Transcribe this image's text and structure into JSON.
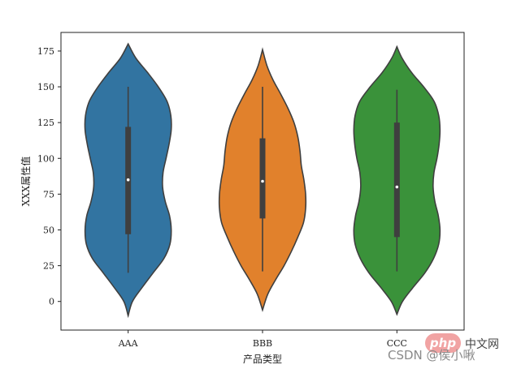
{
  "chart_data": {
    "type": "violin",
    "xlabel": "产品类型",
    "ylabel": "XXX属性值",
    "categories": [
      "AAA",
      "BBB",
      "CCC"
    ],
    "colors": [
      "#3274a1",
      "#e1812c",
      "#3a923a"
    ],
    "ylim": [
      -20,
      188
    ],
    "yticks": [
      0,
      25,
      50,
      75,
      100,
      125,
      150,
      175
    ],
    "grid": false,
    "legend": "none",
    "series": [
      {
        "box": {
          "min": 20,
          "q1": 47,
          "median": 85,
          "q3": 122,
          "max": 150
        },
        "density": [
          [
            -10,
            0.0
          ],
          [
            0,
            0.1
          ],
          [
            10,
            0.33
          ],
          [
            20,
            0.58
          ],
          [
            30,
            0.83
          ],
          [
            40,
            0.97
          ],
          [
            50,
            1.0
          ],
          [
            60,
            0.96
          ],
          [
            70,
            0.86
          ],
          [
            80,
            0.8
          ],
          [
            90,
            0.81
          ],
          [
            100,
            0.88
          ],
          [
            110,
            0.95
          ],
          [
            120,
            1.0
          ],
          [
            130,
            0.99
          ],
          [
            140,
            0.9
          ],
          [
            150,
            0.7
          ],
          [
            160,
            0.45
          ],
          [
            170,
            0.18
          ],
          [
            180,
            0.0
          ]
        ]
      },
      {
        "box": {
          "min": 21,
          "q1": 58,
          "median": 84,
          "q3": 114,
          "max": 150
        },
        "density": [
          [
            -6,
            0.0
          ],
          [
            5,
            0.12
          ],
          [
            15,
            0.3
          ],
          [
            25,
            0.5
          ],
          [
            35,
            0.67
          ],
          [
            45,
            0.82
          ],
          [
            55,
            0.95
          ],
          [
            65,
            1.0
          ],
          [
            75,
            1.0
          ],
          [
            85,
            0.96
          ],
          [
            95,
            0.9
          ],
          [
            105,
            0.87
          ],
          [
            115,
            0.82
          ],
          [
            125,
            0.73
          ],
          [
            135,
            0.59
          ],
          [
            145,
            0.42
          ],
          [
            155,
            0.24
          ],
          [
            165,
            0.1
          ],
          [
            176,
            0.0
          ]
        ]
      },
      {
        "box": {
          "min": 21,
          "q1": 45,
          "median": 80,
          "q3": 125,
          "max": 148
        },
        "density": [
          [
            -9,
            0.0
          ],
          [
            0,
            0.13
          ],
          [
            10,
            0.38
          ],
          [
            20,
            0.65
          ],
          [
            30,
            0.85
          ],
          [
            40,
            0.97
          ],
          [
            50,
            1.0
          ],
          [
            60,
            0.96
          ],
          [
            70,
            0.88
          ],
          [
            80,
            0.84
          ],
          [
            90,
            0.86
          ],
          [
            100,
            0.93
          ],
          [
            110,
            0.98
          ],
          [
            120,
            1.0
          ],
          [
            130,
            0.97
          ],
          [
            140,
            0.86
          ],
          [
            150,
            0.62
          ],
          [
            160,
            0.34
          ],
          [
            170,
            0.12
          ],
          [
            178,
            0.0
          ]
        ]
      }
    ]
  },
  "watermark": {
    "php": "php",
    "php_cn": "中文网",
    "csdn": "CSDN @侯小啾"
  }
}
